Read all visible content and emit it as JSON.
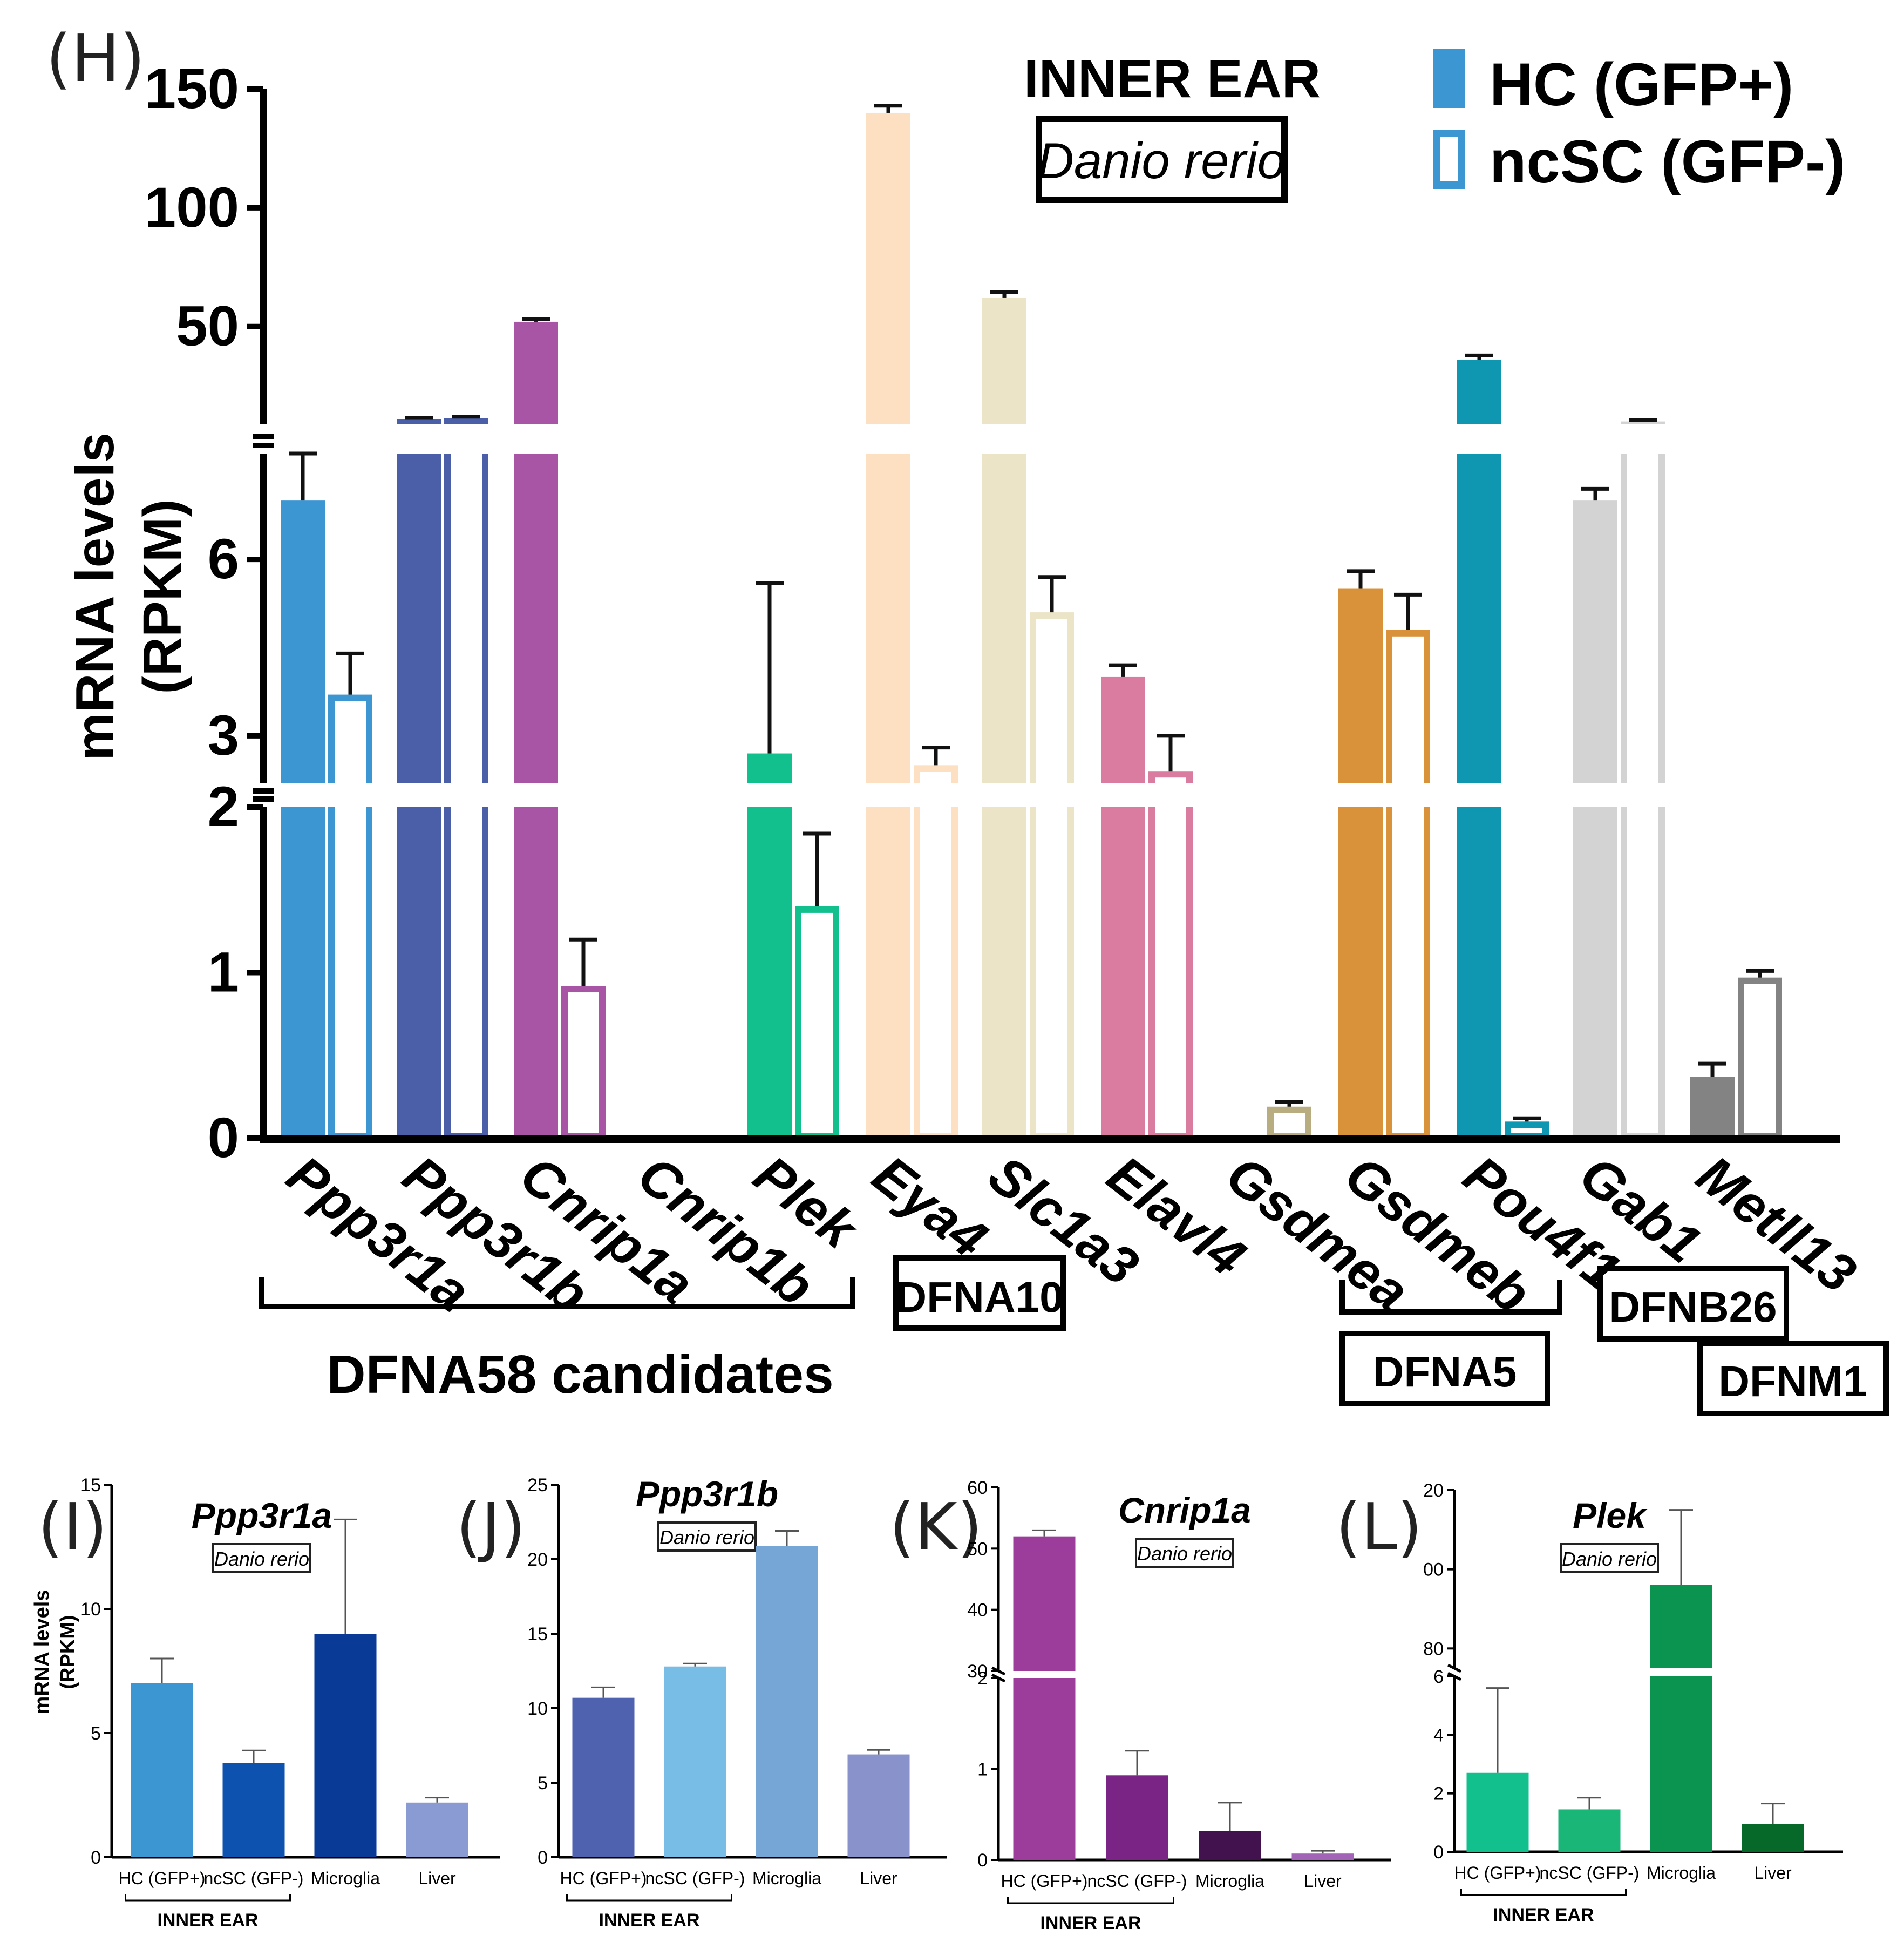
{
  "colors": {
    "Ppp3r1a": "#3c96d2",
    "Ppp3r1b": "#4a5fa8",
    "Cnrip1a": "#a855a6",
    "Plek": "#12c08e",
    "Eya4": "#fde0c2",
    "Slc1a3": "#ebe4c6",
    "Elavl4": "#d97ca0",
    "Gsdmea": "#b8ad80",
    "Gsdmeb": "#d9913a",
    "Pou4f1": "#0f97b2",
    "Gab1": "#d3d3d3",
    "Metll13": "#838383"
  },
  "chart_data": [
    {
      "panel": "(H)",
      "type": "bar",
      "title": "INNER EAR",
      "species": "Danio rerio",
      "ylabel_line1": "mRNA levels",
      "ylabel_line2": "(RPKM)",
      "axis_breaks": [
        [
          2,
          2.2
        ],
        [
          7.8,
          9
        ]
      ],
      "segments": {
        "bottom": {
          "range": [
            0,
            2
          ],
          "ticks": [
            "0",
            "1",
            "2"
          ]
        },
        "middle": {
          "range": [
            2.2,
            7.8
          ],
          "ticks": [
            "3",
            "6"
          ]
        },
        "top": {
          "range": [
            9,
            150
          ],
          "ticks": [
            "50",
            "100",
            "150"
          ]
        }
      },
      "legend": [
        {
          "label": "HC (GFP+)",
          "style": "filled"
        },
        {
          "label": "ncSC (GFP-)",
          "style": "open"
        }
      ],
      "categories": [
        "Ppp3r1a",
        "Ppp3r1b",
        "Cnrip1a",
        "Cnrip1b",
        "Plek",
        "Eya4",
        "Slc1a3",
        "Elavl4",
        "Gsdmea",
        "Gsdmeb",
        "Pou4f1",
        "Gab1",
        "Metll13"
      ],
      "series": [
        {
          "name": "HC (GFP+)",
          "values": [
            7.0,
            11.0,
            52.0,
            0,
            2.7,
            140.0,
            62.0,
            4.0,
            0,
            5.5,
            36.0,
            7.0,
            0.37
          ],
          "errors": [
            1.5,
            0.5,
            1.2,
            0,
            2.9,
            3.0,
            2.5,
            0.2,
            0,
            0.3,
            1.8,
            0.2,
            0.08
          ]
        },
        {
          "name": "ncSC (GFP-)",
          "values": [
            3.7,
            11.5,
            0.92,
            0,
            1.4,
            2.5,
            5.1,
            2.4,
            0.19,
            4.8,
            0.1,
            10.0,
            0.97
          ],
          "errors": [
            0.7,
            0.5,
            0.28,
            0,
            0.44,
            0.3,
            0.6,
            0.6,
            0.03,
            0.6,
            0.02,
            0.5,
            0.04
          ]
        }
      ],
      "groups": [
        {
          "label": "DFNA58 candidates",
          "members": [
            "Ppp3r1a",
            "Ppp3r1b",
            "Cnrip1a",
            "Cnrip1b",
            "Plek"
          ]
        },
        {
          "label": "DFNA10",
          "members": [
            "Eya4"
          ]
        },
        {
          "label": "DFNA5",
          "members": [
            "Gsdmea",
            "Gsdmeb"
          ]
        },
        {
          "label": "DFNB26",
          "members": [
            "Gab1"
          ]
        },
        {
          "label": "DFNM1",
          "members": [
            "Metll13"
          ]
        }
      ]
    },
    {
      "panel": "(I)",
      "type": "bar",
      "title": "Ppp3r1a",
      "species": "Danio rerio",
      "ylabel_line1": "mRNA levels",
      "ylabel_line2": "(RPKM)",
      "categories": [
        "HC (GFP+)",
        "ncSC (GFP-)",
        "Microglia",
        "Liver"
      ],
      "values": [
        7.0,
        3.8,
        9.0,
        2.2
      ],
      "errors": [
        1.0,
        0.5,
        4.6,
        0.2
      ],
      "ylim": [
        0,
        15
      ],
      "ticks": [
        "0",
        "5",
        "10",
        "15"
      ],
      "bar_colors": [
        "#3c96d2",
        "#0e52b0",
        "#083a96",
        "#8a9ad2"
      ],
      "group_label": "INNER EAR"
    },
    {
      "panel": "(J)",
      "type": "bar",
      "title": "Ppp3r1b",
      "species": "Danio rerio",
      "categories": [
        "HC (GFP+)",
        "ncSC (GFP-)",
        "Microglia",
        "Liver"
      ],
      "values": [
        10.7,
        12.8,
        20.9,
        6.9
      ],
      "errors": [
        0.7,
        0.2,
        1.0,
        0.3
      ],
      "ylim": [
        0,
        25
      ],
      "ticks": [
        "0",
        "5",
        "10",
        "15",
        "20",
        "25"
      ],
      "bar_colors": [
        "#4f62b0",
        "#78bde6",
        "#75a6d6",
        "#8a92cc"
      ],
      "group_label": "INNER EAR"
    },
    {
      "panel": "(K)",
      "type": "bar",
      "title": "Cnrip1a",
      "species": "Danio rerio",
      "categories": [
        "HC (GFP+)",
        "ncSC (GFP-)",
        "Microglia",
        "Liver"
      ],
      "values": [
        52.0,
        0.93,
        0.32,
        0.07
      ],
      "errors": [
        1.0,
        0.27,
        0.31,
        0.03
      ],
      "axis_breaks": [
        [
          2,
          30
        ]
      ],
      "segments": {
        "bottom": {
          "range": [
            0,
            2
          ],
          "ticks": [
            "0",
            "1",
            "2"
          ]
        },
        "top": {
          "range": [
            30,
            60
          ],
          "ticks": [
            "30",
            "40",
            "50",
            "60"
          ]
        }
      },
      "bar_colors": [
        "#9c3d9c",
        "#7a2585",
        "#42124f",
        "#a264b6"
      ],
      "group_label": "INNER EAR"
    },
    {
      "panel": "(L)",
      "type": "bar",
      "title": "Plek",
      "species": "Danio rerio",
      "categories": [
        "HC (GFP+)",
        "ncSC (GFP-)",
        "Microglia",
        "Liver"
      ],
      "values": [
        2.7,
        1.45,
        96.0,
        0.95
      ],
      "errors": [
        2.9,
        0.4,
        19.0,
        0.7
      ],
      "axis_breaks": [
        [
          6,
          75
        ]
      ],
      "segments": {
        "bottom": {
          "range": [
            0,
            6
          ],
          "ticks": [
            "0",
            "2",
            "4",
            "6"
          ]
        },
        "top": {
          "range": [
            75,
            120
          ],
          "ticks": [
            "80",
            "00",
            "20"
          ]
        }
      },
      "bar_colors": [
        "#12c08e",
        "#19b677",
        "#0b9450",
        "#06692a"
      ],
      "group_label": "INNER EAR"
    }
  ]
}
